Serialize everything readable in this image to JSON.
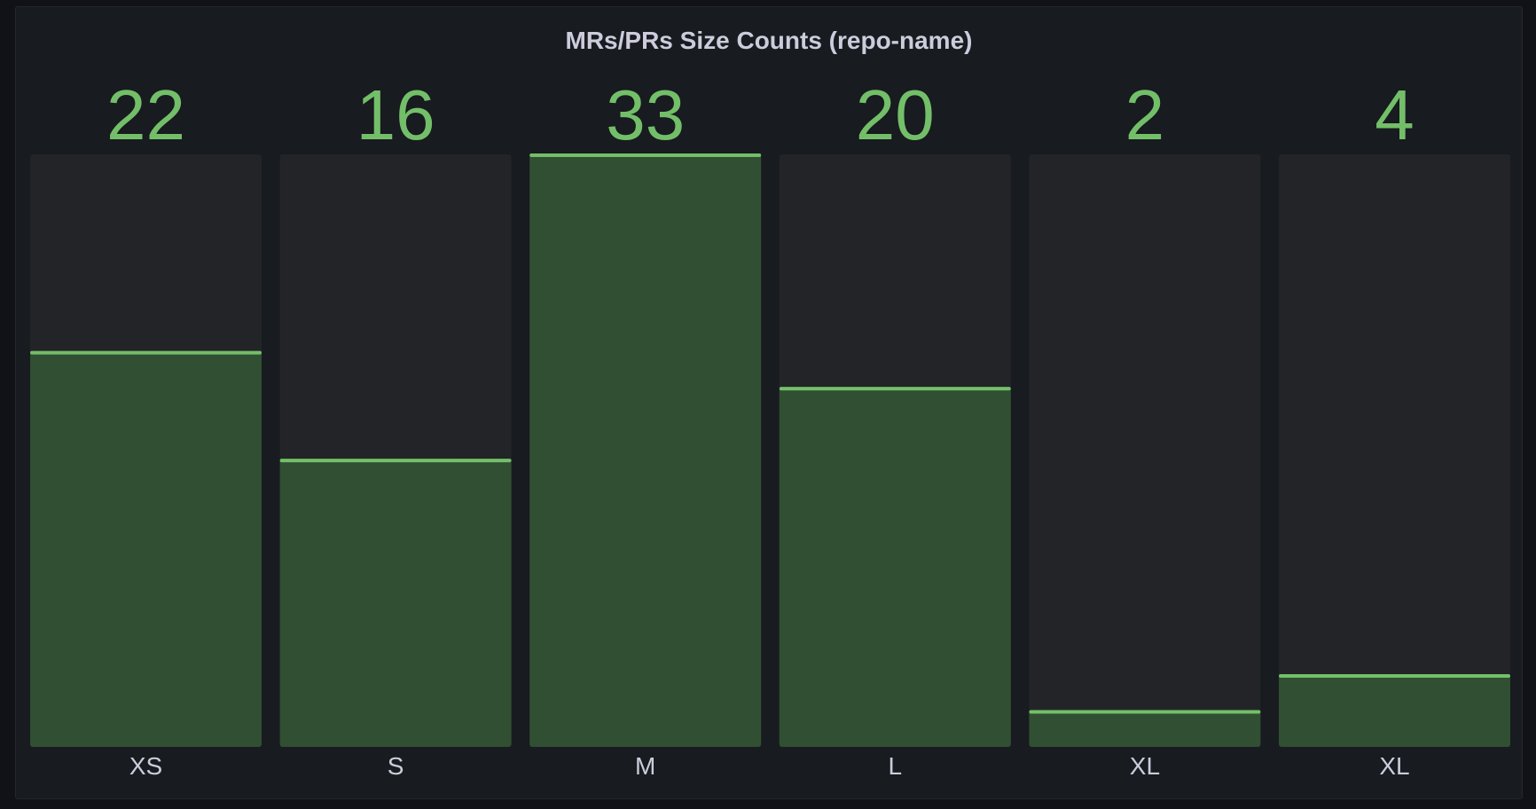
{
  "panel": {
    "title": "MRs/PRs Size Counts (repo-name)"
  },
  "colors": {
    "background": "#111217",
    "panel": "#181b1f",
    "track": "#232428",
    "fill": "#314f33",
    "accent": "#73bf69",
    "label": "#ccccdc"
  },
  "chart_data": {
    "type": "bar",
    "title": "MRs/PRs Size Counts (repo-name)",
    "categories": [
      "XS",
      "S",
      "M",
      "L",
      "XL",
      "XL"
    ],
    "values": [
      22,
      16,
      33,
      20,
      2,
      4
    ],
    "xlabel": "",
    "ylabel": "",
    "ylim": [
      0,
      33
    ],
    "grid": false,
    "legend": "none"
  }
}
